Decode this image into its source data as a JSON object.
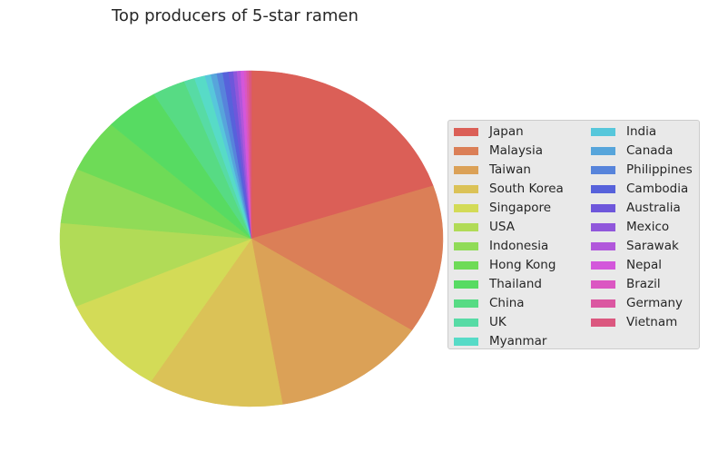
{
  "chart_data": {
    "type": "pie",
    "title": "Top producers of 5-star ramen",
    "legend_position": "right",
    "legend_columns": 2,
    "slices": [
      {
        "label": "Japan",
        "value": 19.9,
        "color": "#db5f57"
      },
      {
        "label": "Malaysia",
        "value": 14.3,
        "color": "#db7f57"
      },
      {
        "label": "Taiwan",
        "value": 13.2,
        "color": "#dba157"
      },
      {
        "label": "South Korea",
        "value": 11.4,
        "color": "#dbc257"
      },
      {
        "label": "Singapore",
        "value": 9.6,
        "color": "#d3db57"
      },
      {
        "label": "USA",
        "value": 8.1,
        "color": "#b1db57"
      },
      {
        "label": "Indonesia",
        "value": 5.3,
        "color": "#90db57"
      },
      {
        "label": "Hong Kong",
        "value": 5.1,
        "color": "#6edb57"
      },
      {
        "label": "Thailand",
        "value": 4.6,
        "color": "#57db62"
      },
      {
        "label": "China",
        "value": 2.8,
        "color": "#57db84"
      },
      {
        "label": "UK",
        "value": 0.9,
        "color": "#57dba5"
      },
      {
        "label": "Myanmar",
        "value": 0.9,
        "color": "#57dbc7"
      },
      {
        "label": "India",
        "value": 0.5,
        "color": "#57c7db"
      },
      {
        "label": "Canada",
        "value": 0.5,
        "color": "#57a5db"
      },
      {
        "label": "Philippines",
        "value": 0.5,
        "color": "#5784db"
      },
      {
        "label": "Cambodia",
        "value": 0.5,
        "color": "#5762db"
      },
      {
        "label": "Australia",
        "value": 0.4,
        "color": "#6e57db"
      },
      {
        "label": "Mexico",
        "value": 0.3,
        "color": "#9057db"
      },
      {
        "label": "Sarawak",
        "value": 0.3,
        "color": "#b157db"
      },
      {
        "label": "Nepal",
        "value": 0.3,
        "color": "#d357db"
      },
      {
        "label": "Brazil",
        "value": 0.2,
        "color": "#db57c2"
      },
      {
        "label": "Germany",
        "value": 0.2,
        "color": "#db57a1"
      },
      {
        "label": "Vietnam",
        "value": 0.2,
        "color": "#db577f"
      }
    ]
  }
}
